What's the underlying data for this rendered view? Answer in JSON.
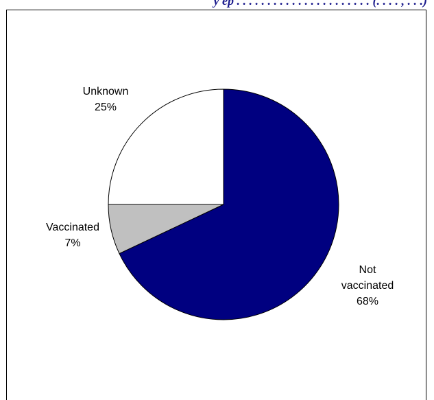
{
  "header": {
    "title_fragment": "y ep . . . . . . . . . . . . . . . . . . . . . . (. . . . , . . .)"
  },
  "chart_data": {
    "type": "pie",
    "title": "",
    "slices": [
      {
        "label": "Not vaccinated",
        "value": 68,
        "pct_label": "68%",
        "color": "#000080"
      },
      {
        "label": "Vaccinated",
        "value": 7,
        "pct_label": "7%",
        "color": "#c0c0c0"
      },
      {
        "label": "Unknown",
        "value": 25,
        "pct_label": "25%",
        "color": "#ffffff"
      }
    ],
    "legend": "none",
    "data_labels": "outside"
  }
}
